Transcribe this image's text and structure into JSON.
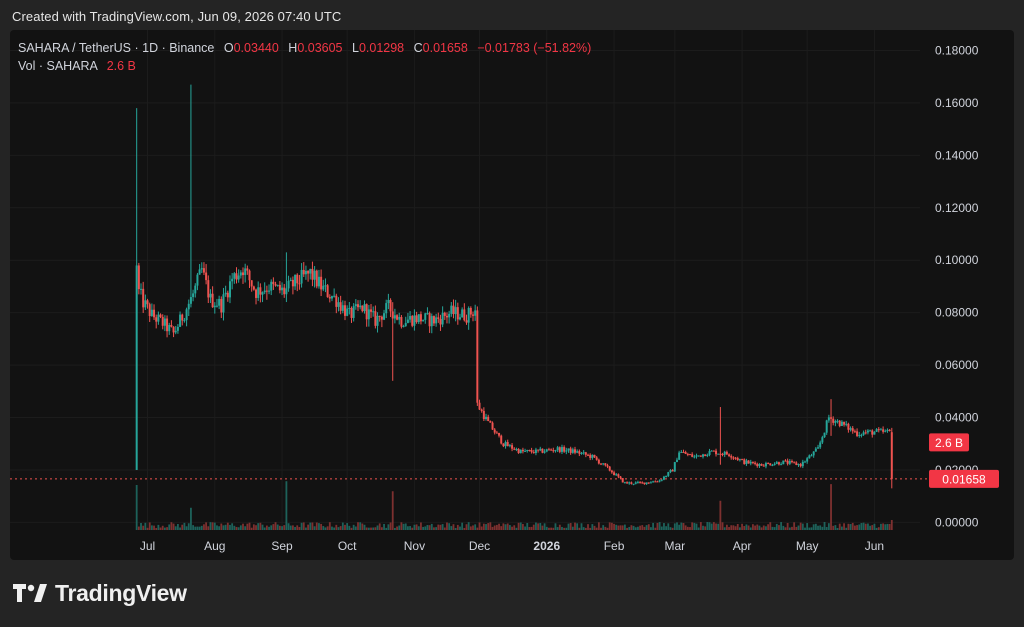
{
  "caption": "Created with TradingView.com, Jun 09, 2026 07:40 UTC",
  "legend": {
    "symbol": "SAHARA / TetherUS · 1D · Binance",
    "o_label": "O",
    "o_value": "0.03440",
    "h_label": "H",
    "h_value": "0.03605",
    "l_label": "L",
    "l_value": "0.01298",
    "c_label": "C",
    "c_value": "0.01658",
    "change": "−0.01783 (−51.82%)",
    "vol_label": "Vol · SAHARA",
    "vol_value": "2.6 B"
  },
  "brand": "TradingView",
  "colors": {
    "up": "#26a69a",
    "down": "#ef5350",
    "bg": "#121212",
    "label_red": "#f23645"
  },
  "chart_data": {
    "type": "candlestick",
    "title": "SAHARA / TetherUS · 1D · Binance",
    "y_ticks": [
      "0.18000",
      "0.16000",
      "0.14000",
      "0.12000",
      "0.10000",
      "0.08000",
      "0.06000",
      "0.04000",
      "0.02000",
      "0.00000"
    ],
    "y_tick_values": [
      0.18,
      0.16,
      0.14,
      0.12,
      0.1,
      0.08,
      0.06,
      0.04,
      0.02,
      0.0
    ],
    "ylim": [
      -0.001,
      0.184
    ],
    "x_ticks": [
      {
        "label": "Jul",
        "date": "2025-07-01"
      },
      {
        "label": "Aug",
        "date": "2025-08-01"
      },
      {
        "label": "Sep",
        "date": "2025-09-01"
      },
      {
        "label": "Oct",
        "date": "2025-10-01"
      },
      {
        "label": "Nov",
        "date": "2025-11-01"
      },
      {
        "label": "Dec",
        "date": "2025-12-01"
      },
      {
        "label": "2026",
        "date": "2026-01-01",
        "bold": true
      },
      {
        "label": "Feb",
        "date": "2026-02-01"
      },
      {
        "label": "Mar",
        "date": "2026-03-01"
      },
      {
        "label": "Apr",
        "date": "2026-04-01"
      },
      {
        "label": "May",
        "date": "2026-05-01"
      },
      {
        "label": "Jun",
        "date": "2026-06-01"
      }
    ],
    "xlim": [
      "2025-06-22",
      "2026-06-22"
    ],
    "last_price": "0.01658",
    "last_volume": "2.6 B",
    "price_path": [
      [
        "2025-06-26",
        0.09
      ],
      [
        "2025-06-29",
        0.084
      ],
      [
        "2025-07-03",
        0.079
      ],
      [
        "2025-07-08",
        0.076
      ],
      [
        "2025-07-13",
        0.072
      ],
      [
        "2025-07-18",
        0.08
      ],
      [
        "2025-07-22",
        0.087
      ],
      [
        "2025-07-26",
        0.096
      ],
      [
        "2025-07-30",
        0.085
      ],
      [
        "2025-08-04",
        0.083
      ],
      [
        "2025-08-09",
        0.093
      ],
      [
        "2025-08-14",
        0.097
      ],
      [
        "2025-08-20",
        0.088
      ],
      [
        "2025-08-26",
        0.09
      ],
      [
        "2025-09-02",
        0.088
      ],
      [
        "2025-09-08",
        0.092
      ],
      [
        "2025-09-14",
        0.095
      ],
      [
        "2025-09-20",
        0.089
      ],
      [
        "2025-09-26",
        0.085
      ],
      [
        "2025-10-02",
        0.079
      ],
      [
        "2025-10-08",
        0.082
      ],
      [
        "2025-10-14",
        0.077
      ],
      [
        "2025-10-20",
        0.082
      ],
      [
        "2025-10-26",
        0.077
      ],
      [
        "2025-11-02",
        0.078
      ],
      [
        "2025-11-10",
        0.077
      ],
      [
        "2025-11-18",
        0.08
      ],
      [
        "2025-11-25",
        0.079
      ],
      [
        "2025-11-29",
        0.081
      ],
      [
        "2025-11-30",
        0.045
      ],
      [
        "2025-12-05",
        0.038
      ],
      [
        "2025-12-12",
        0.03
      ],
      [
        "2025-12-20",
        0.027
      ],
      [
        "2025-12-28",
        0.027
      ],
      [
        "2026-01-06",
        0.028
      ],
      [
        "2026-01-14",
        0.027
      ],
      [
        "2026-01-22",
        0.025
      ],
      [
        "2026-01-30",
        0.02
      ],
      [
        "2026-02-06",
        0.015
      ],
      [
        "2026-02-14",
        0.015
      ],
      [
        "2026-02-22",
        0.016
      ],
      [
        "2026-02-28",
        0.02
      ],
      [
        "2026-03-03",
        0.027
      ],
      [
        "2026-03-10",
        0.025
      ],
      [
        "2026-03-18",
        0.027
      ],
      [
        "2026-03-26",
        0.026
      ],
      [
        "2026-04-02",
        0.023
      ],
      [
        "2026-04-10",
        0.022
      ],
      [
        "2026-04-20",
        0.023
      ],
      [
        "2026-04-28",
        0.022
      ],
      [
        "2026-05-06",
        0.028
      ],
      [
        "2026-05-11",
        0.04
      ],
      [
        "2026-05-16",
        0.038
      ],
      [
        "2026-05-24",
        0.034
      ],
      [
        "2026-06-01",
        0.0345
      ],
      [
        "2026-06-08",
        0.0344
      ]
    ],
    "spikes": [
      {
        "date": "2025-07-21",
        "high": 0.167,
        "low": 0.082
      },
      {
        "date": "2025-09-03",
        "high": 0.103,
        "low": 0.085
      },
      {
        "date": "2025-10-22",
        "high": 0.084,
        "low": 0.054
      },
      {
        "date": "2026-03-22",
        "high": 0.044,
        "low": 0.022
      },
      {
        "date": "2026-05-12",
        "high": 0.047,
        "low": 0.033
      }
    ],
    "first_candle": {
      "date": "2025-06-26",
      "open": 0.02,
      "high": 0.158,
      "low": 0.02,
      "close": 0.098
    },
    "last_candle": {
      "date": "2026-06-09",
      "open": 0.0344,
      "high": 0.03605,
      "low": 0.01298,
      "close": 0.01658
    }
  }
}
